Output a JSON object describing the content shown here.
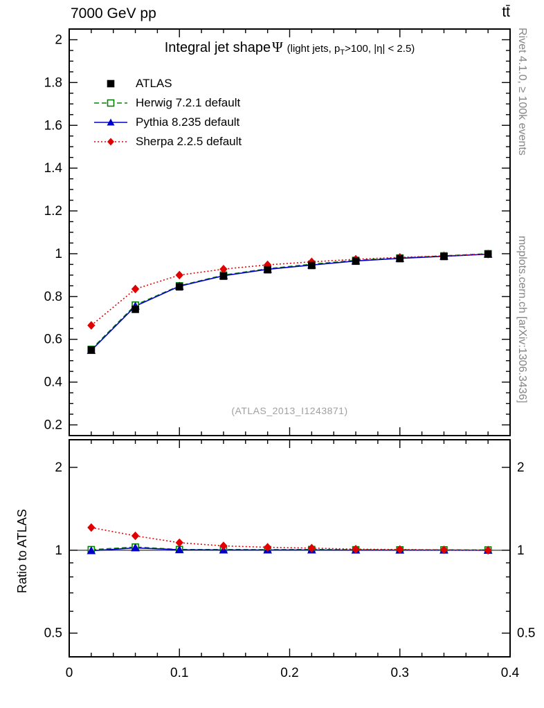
{
  "header": {
    "left": "7000 GeV pp",
    "right": "tt̄"
  },
  "side_notes": {
    "top_right": "Rivet 4.1.0, ≥ 100k events",
    "bottom_right": "mcplots.cern.ch [arXiv:1306.3436]"
  },
  "watermark": "(ATLAS_2013_I1243871)",
  "ratio_label": "Ratio to ATLAS",
  "title": {
    "main": "Integral jet shape",
    "symbol": "Ψ",
    "cond_pre": "(light jets, p",
    "cond_sub": "T",
    "cond_post": ">100, |η| < 2.5)"
  },
  "chart_data": {
    "type": "line",
    "title": "Integral jet shape Ψ (light jets, pT>100, |η| < 2.5)",
    "xlabel": "",
    "ylabel": "",
    "ratio_ylabel": "Ratio to ATLAS",
    "legend_position": "top-left-inside",
    "grid": false,
    "x": [
      0.02,
      0.06,
      0.1,
      0.14,
      0.18,
      0.22,
      0.26,
      0.3,
      0.34,
      0.38
    ],
    "xlim": [
      0,
      0.4
    ],
    "xticks": {
      "major": [
        0,
        0.1,
        0.2,
        0.3,
        0.4
      ],
      "labels": [
        "0",
        "0.1",
        "0.2",
        "0.3",
        "0.4"
      ],
      "minor_step": 0.02
    },
    "main_panel": {
      "scale": "linear",
      "ylim": [
        0.15,
        2.05
      ],
      "yticks": [
        0.2,
        0.4,
        0.6,
        0.8,
        1,
        1.2,
        1.4,
        1.6,
        1.8,
        2
      ],
      "ytick_labels": [
        "0.2",
        "0.4",
        "0.6",
        "0.8",
        "1",
        "1.2",
        "1.4",
        "1.6",
        "1.8",
        "2"
      ],
      "minor_step": 0.05
    },
    "ratio_panel": {
      "scale": "log",
      "ylim": [
        0.41,
        2.52
      ],
      "yticks": [
        0.5,
        1,
        2
      ],
      "ytick_labels": [
        "0.5",
        "1",
        "2"
      ],
      "minor_ticks": [
        0.6,
        0.7,
        0.8,
        0.9
      ],
      "reference_line": 1
    },
    "series": [
      {
        "name": "ATLAS",
        "color": "#000000",
        "marker": "square",
        "fill": "filled",
        "line": "none",
        "values": [
          0.55,
          0.74,
          0.845,
          0.895,
          0.925,
          0.945,
          0.965,
          0.977,
          0.987,
          0.998
        ],
        "ratio": null
      },
      {
        "name": "Herwig 7.2.1 default",
        "color": "#008000",
        "marker": "square",
        "fill": "open",
        "line": "dashed",
        "values": [
          0.553,
          0.76,
          0.85,
          0.9,
          0.93,
          0.951,
          0.969,
          0.98,
          0.99,
          1.0
        ],
        "ratio": [
          1.005,
          1.027,
          1.006,
          1.006,
          1.005,
          1.006,
          1.004,
          1.003,
          1.003,
          1.002
        ]
      },
      {
        "name": "Pythia 8.235 default",
        "color": "#0000cc",
        "marker": "triangle",
        "fill": "filled",
        "line": "solid",
        "values": [
          0.548,
          0.755,
          0.848,
          0.897,
          0.927,
          0.947,
          0.966,
          0.978,
          0.988,
          0.998
        ],
        "ratio": [
          0.996,
          1.02,
          1.004,
          1.002,
          1.002,
          1.002,
          1.001,
          1.001,
          1.001,
          1.0
        ]
      },
      {
        "name": "Sherpa 2.2.5 default",
        "color": "#e00000",
        "marker": "diamond",
        "fill": "filled",
        "line": "dotted",
        "values": [
          0.665,
          0.835,
          0.9,
          0.928,
          0.948,
          0.962,
          0.974,
          0.983,
          0.99,
          0.998
        ],
        "ratio": [
          1.209,
          1.128,
          1.065,
          1.037,
          1.025,
          1.018,
          1.009,
          1.006,
          1.003,
          1.0
        ]
      }
    ]
  }
}
